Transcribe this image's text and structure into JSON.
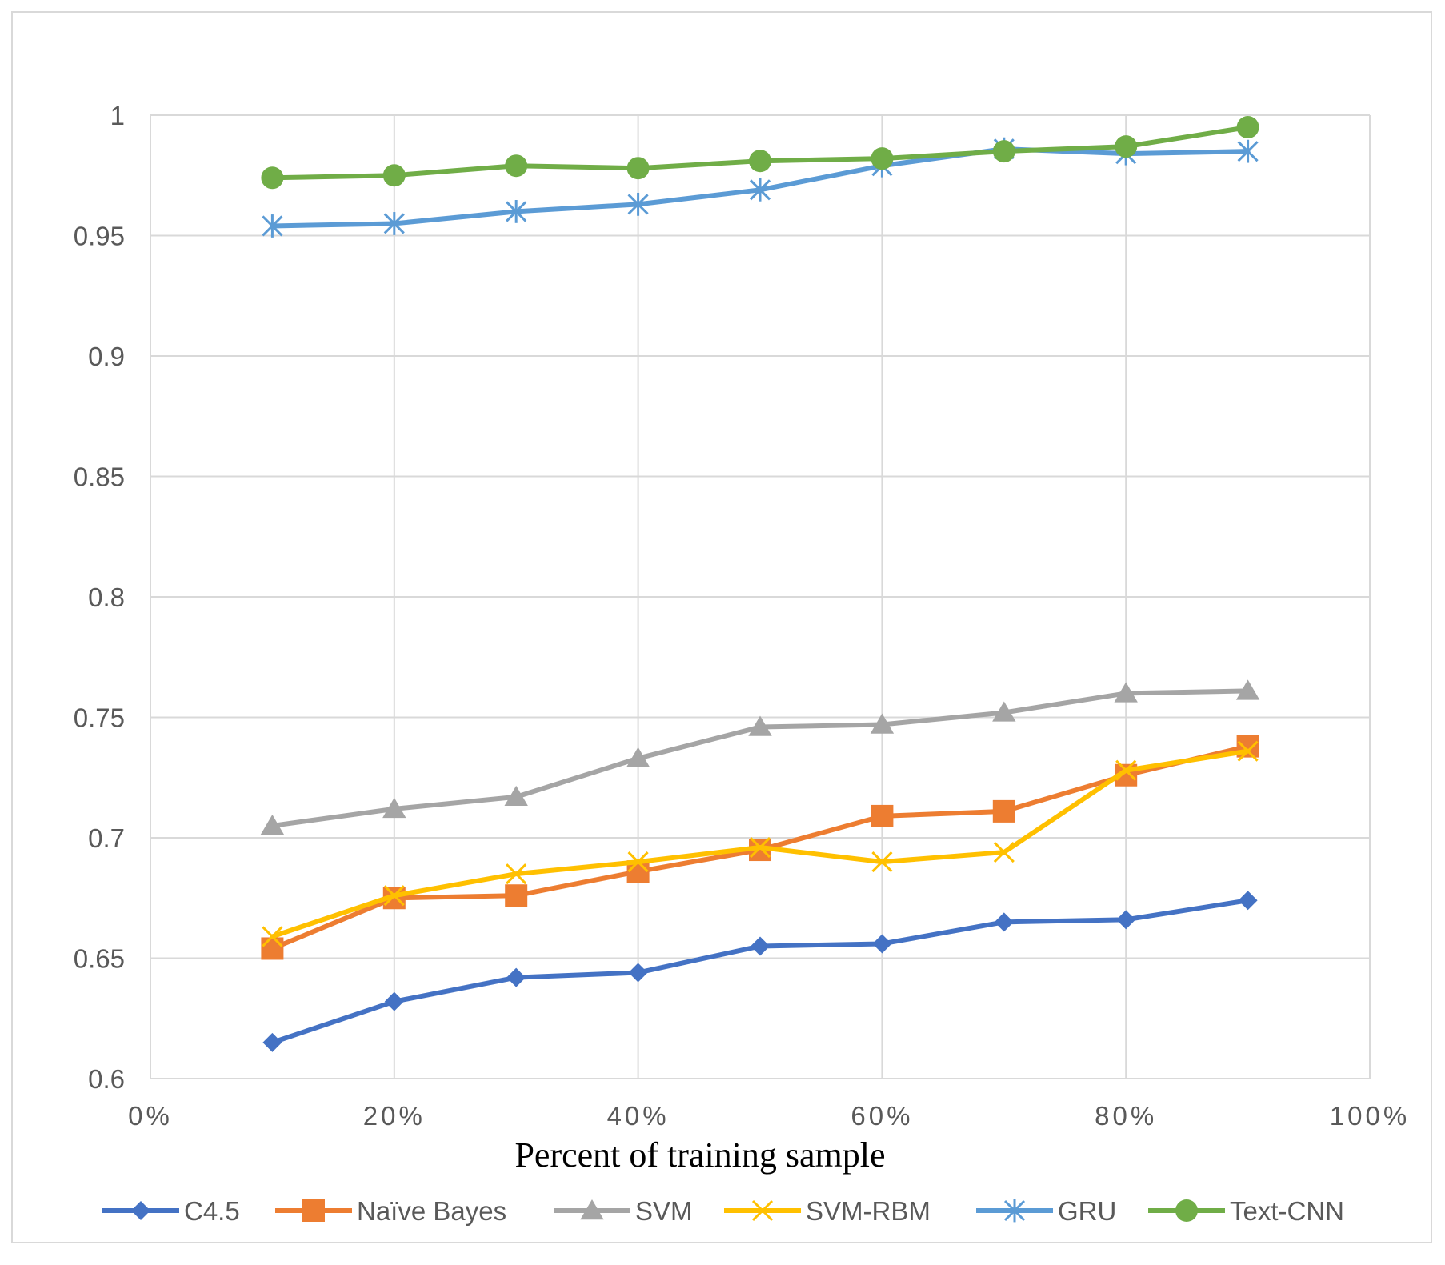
{
  "chart_data": {
    "type": "line",
    "title": "",
    "xlabel": "Percent of training sample",
    "ylabel": "",
    "x": [
      10,
      20,
      30,
      40,
      50,
      60,
      70,
      80,
      90
    ],
    "xlim": [
      0,
      100
    ],
    "ylim": [
      0.6,
      1.0
    ],
    "x_ticks": [
      0,
      20,
      40,
      60,
      80,
      100
    ],
    "x_tick_labels": [
      "0%",
      "20%",
      "40%",
      "60%",
      "80%",
      "100%"
    ],
    "y_ticks": [
      0.6,
      0.65,
      0.7,
      0.75,
      0.8,
      0.85,
      0.9,
      0.95,
      1.0
    ],
    "y_tick_labels": [
      "0.6",
      "0.65",
      "0.7",
      "0.75",
      "0.8",
      "0.85",
      "0.9",
      "0.95",
      "1"
    ],
    "grid": true,
    "legend_position": "bottom",
    "series": [
      {
        "name": "C4.5",
        "color": "#4472c4",
        "marker": "diamond",
        "values": [
          0.615,
          0.632,
          0.642,
          0.644,
          0.655,
          0.656,
          0.665,
          0.666,
          0.674
        ]
      },
      {
        "name": "Naïve Bayes",
        "color": "#ed7d31",
        "marker": "square",
        "values": [
          0.654,
          0.675,
          0.676,
          0.686,
          0.695,
          0.709,
          0.711,
          0.726,
          0.738
        ]
      },
      {
        "name": "SVM",
        "color": "#a5a5a5",
        "marker": "triangle",
        "values": [
          0.705,
          0.712,
          0.717,
          0.733,
          0.746,
          0.747,
          0.752,
          0.76,
          0.761
        ]
      },
      {
        "name": "SVM-RBM",
        "color": "#ffc000",
        "marker": "x",
        "values": [
          0.659,
          0.676,
          0.685,
          0.69,
          0.696,
          0.69,
          0.694,
          0.728,
          0.736
        ]
      },
      {
        "name": "GRU",
        "color": "#5b9bd5",
        "marker": "star",
        "values": [
          0.954,
          0.955,
          0.96,
          0.963,
          0.969,
          0.979,
          0.986,
          0.984,
          0.985
        ]
      },
      {
        "name": "Text-CNN",
        "color": "#70ad47",
        "marker": "circle",
        "values": [
          0.974,
          0.975,
          0.979,
          0.978,
          0.981,
          0.982,
          0.985,
          0.987,
          0.995
        ]
      }
    ]
  }
}
